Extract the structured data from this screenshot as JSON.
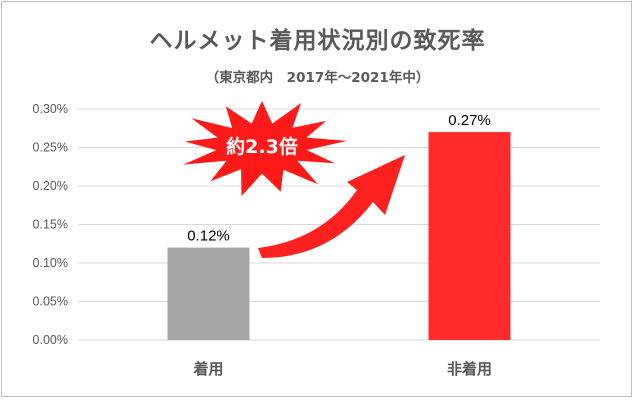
{
  "title": "ヘルメット着用状況別の致死率",
  "subtitle": "（東京都内　2017年～2021年中）",
  "annotation": "約2.3倍",
  "colors": {
    "bar_worn": "#a6a6a6",
    "bar_not_worn": "#ff2a2a",
    "burst": "#ff1a1a",
    "arrow": "#ff2020",
    "gridline": "#d9d9d9",
    "text": "#595959"
  },
  "chart_data": {
    "type": "bar",
    "title": "ヘルメット着用状況別の致死率",
    "subtitle": "（東京都内　2017年～2021年中）",
    "categories": [
      "着用",
      "非着用"
    ],
    "values": [
      0.0012,
      0.0027
    ],
    "data_labels": [
      "0.12%",
      "0.27%"
    ],
    "bar_colors": [
      "#a6a6a6",
      "#ff2a2a"
    ],
    "ylim": [
      0,
      0.003
    ],
    "yticks": [
      0,
      0.0005,
      0.001,
      0.0015,
      0.002,
      0.0025,
      0.003
    ],
    "ytick_labels": [
      "0.00%",
      "0.05%",
      "0.10%",
      "0.15%",
      "0.20%",
      "0.25%",
      "0.30%"
    ],
    "grid": true,
    "legend": "none",
    "annotation": "約2.3倍"
  }
}
